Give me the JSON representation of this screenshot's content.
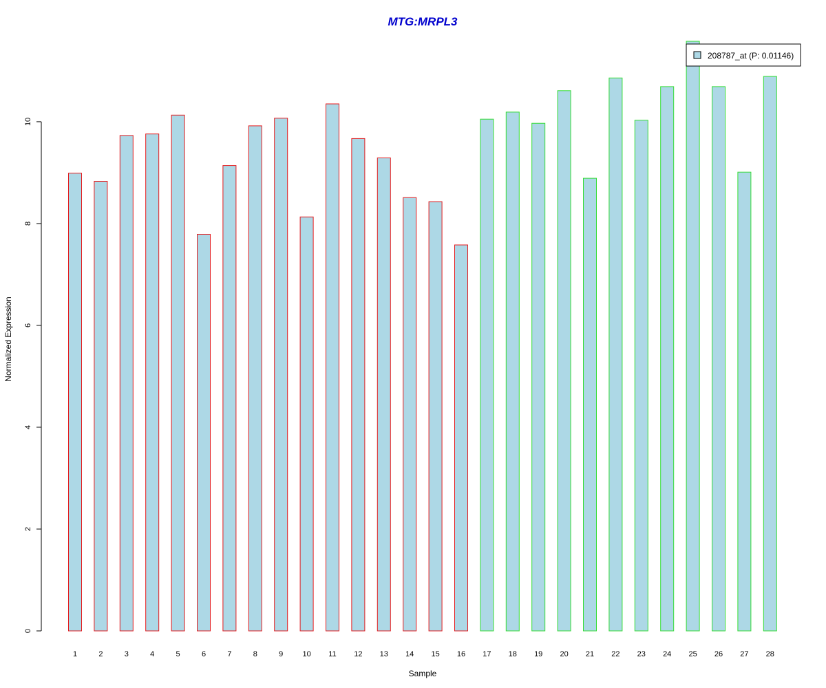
{
  "chart_data": {
    "type": "bar",
    "title": "MTG:MRPL3",
    "xlabel": "Sample",
    "ylabel": "Normalized Expression",
    "categories": [
      "1",
      "2",
      "3",
      "4",
      "5",
      "6",
      "7",
      "8",
      "9",
      "10",
      "11",
      "12",
      "13",
      "14",
      "15",
      "16",
      "17",
      "18",
      "19",
      "20",
      "21",
      "22",
      "23",
      "24",
      "25",
      "26",
      "27",
      "28"
    ],
    "values": [
      8.99,
      8.83,
      9.73,
      9.76,
      10.13,
      7.79,
      9.14,
      9.92,
      10.07,
      8.13,
      10.35,
      9.67,
      9.29,
      8.51,
      8.43,
      7.58,
      10.05,
      10.19,
      9.97,
      10.61,
      8.89,
      10.86,
      10.03,
      10.69,
      11.58,
      10.69,
      9.01,
      10.89
    ],
    "group_edge_colors": [
      "#E41A1C",
      "#E41A1C",
      "#E41A1C",
      "#E41A1C",
      "#E41A1C",
      "#E41A1C",
      "#E41A1C",
      "#E41A1C",
      "#E41A1C",
      "#E41A1C",
      "#E41A1C",
      "#E41A1C",
      "#E41A1C",
      "#E41A1C",
      "#E41A1C",
      "#E41A1C",
      "#33DD33",
      "#33DD33",
      "#33DD33",
      "#33DD33",
      "#33DD33",
      "#33DD33",
      "#33DD33",
      "#33DD33",
      "#33DD33",
      "#33DD33",
      "#33DD33",
      "#33DD33"
    ],
    "bar_fill": "#ADD8E6",
    "title_color": "#0000CD",
    "yticks": [
      0,
      2,
      4,
      6,
      8,
      10
    ],
    "ylim": [
      0,
      11.58
    ],
    "grid": false,
    "legend": {
      "position": "top-right",
      "entries": [
        {
          "label": "208787_at (P: 0.01146)",
          "color": "#ADD8E6"
        }
      ]
    }
  }
}
